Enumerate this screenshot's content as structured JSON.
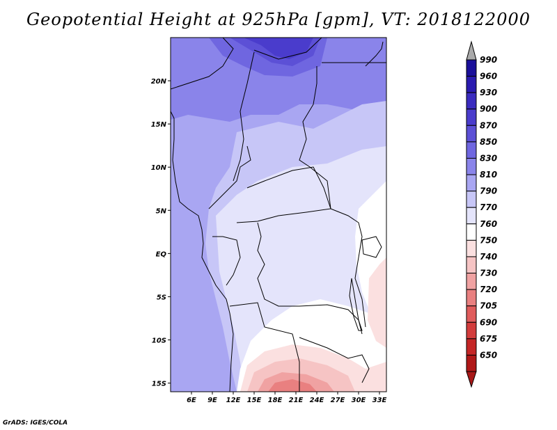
{
  "title": "Geopotential Height at 925hPa [gpm], VT: 2018122000",
  "credit": "GrADS: IGES/COLA",
  "map": {
    "lon_range": [
      3,
      34
    ],
    "lat_range": [
      -16,
      25
    ],
    "lon_ticks": [
      {
        "value": 6,
        "label": "6E"
      },
      {
        "value": 9,
        "label": "9E"
      },
      {
        "value": 12,
        "label": "12E"
      },
      {
        "value": 15,
        "label": "15E"
      },
      {
        "value": 18,
        "label": "18E"
      },
      {
        "value": 21,
        "label": "21E"
      },
      {
        "value": 24,
        "label": "24E"
      },
      {
        "value": 27,
        "label": "27E"
      },
      {
        "value": 30,
        "label": "30E"
      },
      {
        "value": 33,
        "label": "33E"
      }
    ],
    "lat_ticks": [
      {
        "value": 20,
        "label": "20N"
      },
      {
        "value": 15,
        "label": "15N"
      },
      {
        "value": 10,
        "label": "10N"
      },
      {
        "value": 5,
        "label": "5N"
      },
      {
        "value": 0,
        "label": "EQ"
      },
      {
        "value": -5,
        "label": "5S"
      },
      {
        "value": -10,
        "label": "10S"
      },
      {
        "value": -15,
        "label": "15S"
      }
    ]
  },
  "colorbar": {
    "labels": [
      "990",
      "960",
      "930",
      "900",
      "870",
      "850",
      "830",
      "810",
      "790",
      "770",
      "760",
      "750",
      "740",
      "730",
      "720",
      "705",
      "690",
      "675",
      "650"
    ],
    "colors": [
      "#1a0f9a",
      "#2a1bb0",
      "#3a2bbf",
      "#4a3ccc",
      "#5c50d6",
      "#6f66e0",
      "#8a84ea",
      "#a9a6f2",
      "#c7c6f7",
      "#e4e4fb",
      "#ffffff",
      "#fbe0e0",
      "#f6c4c4",
      "#f0a2a2",
      "#e98080",
      "#e05c5c",
      "#d33c3c",
      "#c42626",
      "#b01818"
    ],
    "top_arrow_color": "#aaaaaa",
    "bottom_arrow_color": "#a81818"
  }
}
